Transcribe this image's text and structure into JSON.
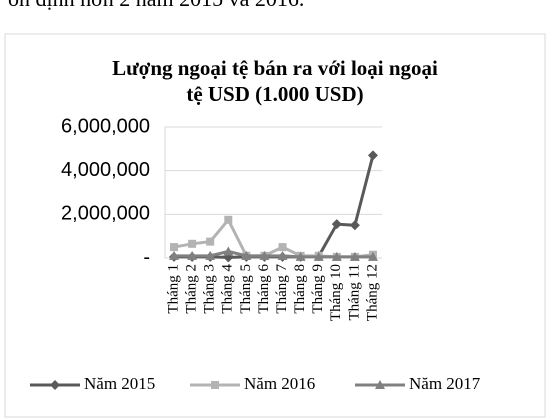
{
  "caption": "ổn định hơn 2 năm 2015 và 2016.",
  "chart_data": {
    "type": "line",
    "title": "Lượng ngoại tệ bán ra với loại ngoại tệ USD (1.000 USD)",
    "categories": [
      "Tháng 1",
      "Tháng 2",
      "Tháng 3",
      "Tháng 4",
      "Tháng 5",
      "Tháng 6",
      "Tháng 7",
      "Tháng 8",
      "Tháng 9",
      "Tháng 10",
      "Tháng 11",
      "Tháng 12"
    ],
    "series": [
      {
        "name": "Năm 2015",
        "color": "#595959",
        "marker": "diamond",
        "values": [
          50000,
          50000,
          50000,
          30000,
          50000,
          50000,
          50000,
          50000,
          80000,
          1550000,
          1500000,
          4700000
        ]
      },
      {
        "name": "Năm 2016",
        "color": "#b3b3b3",
        "marker": "square",
        "values": [
          500000,
          650000,
          750000,
          1750000,
          100000,
          100000,
          500000,
          100000,
          100000,
          50000,
          50000,
          150000
        ]
      },
      {
        "name": "Năm 2017",
        "color": "#808080",
        "marker": "triangle",
        "values": [
          100000,
          100000,
          100000,
          300000,
          100000,
          100000,
          100000,
          50000,
          50000,
          50000,
          50000,
          50000
        ]
      }
    ],
    "ylim": [
      0,
      6000000
    ],
    "yticks": [
      {
        "value": 0,
        "label": "-"
      },
      {
        "value": 2000000,
        "label": "2,000,000"
      },
      {
        "value": 4000000,
        "label": "4,000,000"
      },
      {
        "value": 6000000,
        "label": "6,000,000"
      }
    ],
    "grid": true,
    "legend": "bottom"
  }
}
